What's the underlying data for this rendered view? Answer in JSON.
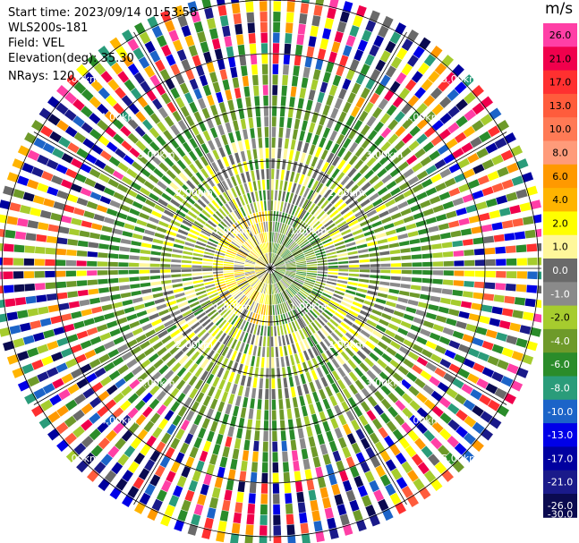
{
  "header": {
    "start_time": "Start time: 2023/09/14 01:53:58",
    "instrument": "WLS200s-181",
    "field": "Field: VEL",
    "elevation": "Elevation(deg): 35.30",
    "nrays": "NRays: 120"
  },
  "colorbar": {
    "unit": "m/s",
    "ticks": [
      "26.0",
      "21.0",
      "17.0",
      "13.0",
      "10.0",
      "8.0",
      "6.0",
      "4.0",
      "2.0",
      "1.0",
      "0.0",
      "-1.0",
      "-2.0",
      "-4.0",
      "-6.0",
      "-8.0",
      "-10.0",
      "-13.0",
      "-17.0",
      "-21.0",
      "-26.0",
      "-30.0"
    ],
    "colors": [
      "#ff3fa6",
      "#f0004c",
      "#ff3030",
      "#ff5c3c",
      "#ff7a55",
      "#ff9b7a",
      "#ff9900",
      "#ffb400",
      "#ffff00",
      "#fff79b",
      "#6a6a6a",
      "#8a8a8a",
      "#a6cc2e",
      "#6e9a2a",
      "#2a8c2a",
      "#2a9c7a",
      "#1c64c8",
      "#0000e8",
      "#0000a0",
      "#1a1a8a",
      "#0a0a50"
    ]
  },
  "chart_data": {
    "type": "heatmap",
    "projection": "polar PPI",
    "field": "VEL",
    "units": "m/s",
    "nrays": 120,
    "vmin": -30.0,
    "vmax": 26.0,
    "range_rings_km": [
      1.0,
      2.0,
      3.0,
      4.0,
      5.0
    ],
    "ring_labels": [
      "1.00km",
      "2.00km",
      "3.00km",
      "4.00km",
      "5.00km"
    ]
  }
}
